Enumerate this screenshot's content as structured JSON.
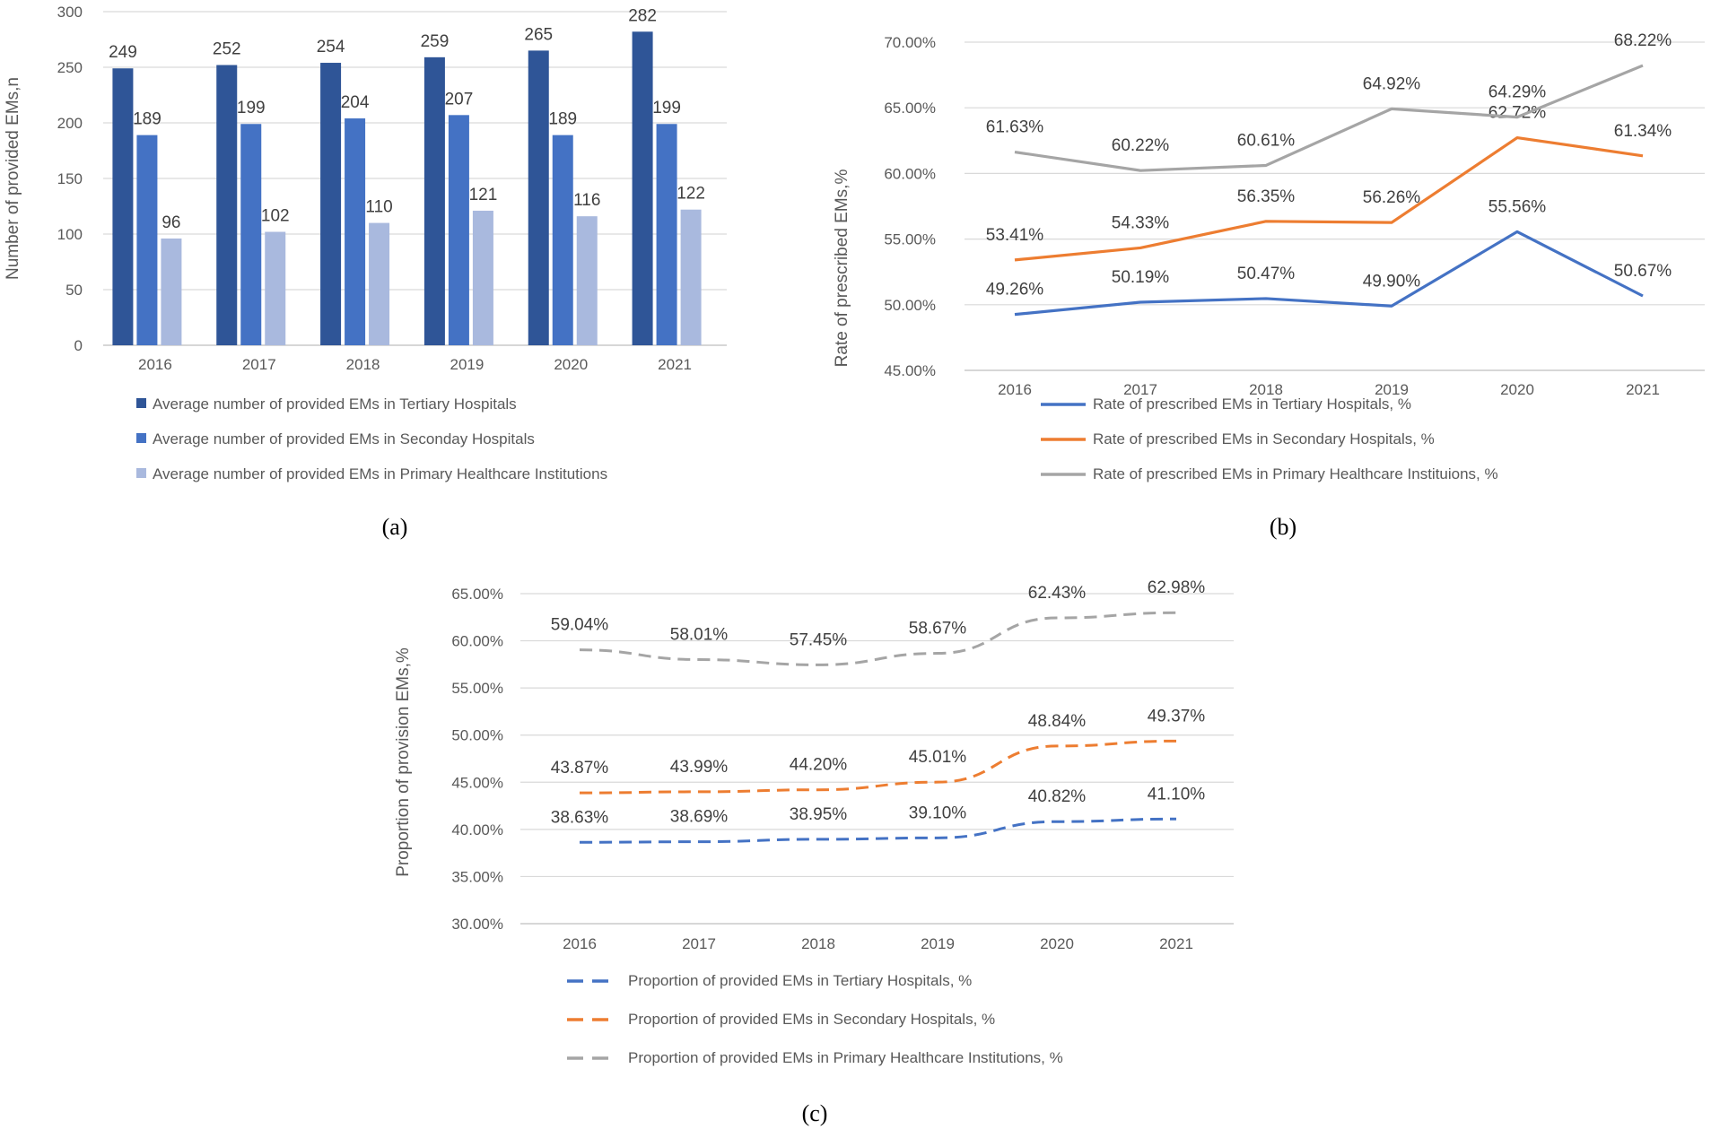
{
  "chart_data": [
    {
      "id": "a",
      "type": "bar",
      "caption": "(a)",
      "title": "",
      "xlabel": "",
      "ylabel": "Number of provided EMs,n",
      "ylim": [
        0,
        300
      ],
      "yticks": [
        "0",
        "50",
        "100",
        "150",
        "200",
        "250",
        "300"
      ],
      "categories": [
        "2016",
        "2017",
        "2018",
        "2019",
        "2020",
        "2021"
      ],
      "series": [
        {
          "name": "Average number of provided EMs in Tertiary Hospitals",
          "color": "#2f5597",
          "values": [
            249,
            252,
            254,
            259,
            265,
            282
          ]
        },
        {
          "name": "Average number of provided EMs in Seconday Hospitals",
          "color": "#4472c4",
          "values": [
            189,
            199,
            204,
            207,
            189,
            199
          ]
        },
        {
          "name": "Average number of provided EMs in Primary Healthcare Institutions",
          "color": "#a9b9de",
          "values": [
            96,
            102,
            110,
            121,
            116,
            122
          ]
        }
      ],
      "legend_position": "bottom",
      "grid": true
    },
    {
      "id": "b",
      "type": "line",
      "caption": "(b)",
      "title": "",
      "xlabel": "",
      "ylabel": "Rate of prescribed EMs,%",
      "ylim": [
        45,
        70
      ],
      "yticks": [
        "45.00%",
        "50.00%",
        "55.00%",
        "60.00%",
        "65.00%",
        "70.00%"
      ],
      "categories": [
        "2016",
        "2017",
        "2018",
        "2019",
        "2020",
        "2021"
      ],
      "series": [
        {
          "name": "Rate of prescribed EMs in Tertiary Hospitals, %",
          "color": "#4472c4",
          "style": "solid",
          "values": [
            49.26,
            50.19,
            50.47,
            49.9,
            55.56,
            50.67
          ],
          "labels": [
            "49.26%",
            "50.19%",
            "50.47%",
            "49.90%",
            "55.56%",
            "50.67%"
          ]
        },
        {
          "name": "Rate of prescribed EMs in Secondary Hospitals, %",
          "color": "#ed7d31",
          "style": "solid",
          "values": [
            53.41,
            54.33,
            56.35,
            56.26,
            62.72,
            61.34
          ],
          "labels": [
            "53.41%",
            "54.33%",
            "56.35%",
            "56.26%",
            "62.72%",
            "61.34%"
          ]
        },
        {
          "name": "Rate of prescribed EMs in Primary Healthcare Instituions, %",
          "color": "#a5a5a5",
          "style": "solid",
          "values": [
            61.63,
            60.22,
            60.61,
            64.92,
            64.29,
            68.22
          ],
          "labels": [
            "61.63%",
            "60.22%",
            "60.61%",
            "64.92%",
            "64.29%",
            "68.22%"
          ]
        }
      ],
      "legend_position": "bottom",
      "grid": true
    },
    {
      "id": "c",
      "type": "line",
      "caption": "(c)",
      "title": "",
      "xlabel": "",
      "ylabel": "Proportion of provision EMs,%",
      "ylim": [
        30,
        65
      ],
      "yticks": [
        "30.00%",
        "35.00%",
        "40.00%",
        "45.00%",
        "50.00%",
        "55.00%",
        "60.00%",
        "65.00%"
      ],
      "categories": [
        "2016",
        "2017",
        "2018",
        "2019",
        "2020",
        "2021"
      ],
      "series": [
        {
          "name": "Proportion of provided EMs in Tertiary Hospitals, %",
          "color": "#4472c4",
          "style": "dashed",
          "values": [
            38.63,
            38.69,
            38.95,
            39.1,
            40.82,
            41.1
          ],
          "labels": [
            "38.63%",
            "38.69%",
            "38.95%",
            "39.10%",
            "40.82%",
            "41.10%"
          ]
        },
        {
          "name": "Proportion of provided EMs in Secondary Hospitals, %",
          "color": "#ed7d31",
          "style": "dashed",
          "values": [
            43.87,
            43.99,
            44.2,
            45.01,
            48.84,
            49.37
          ],
          "labels": [
            "43.87%",
            "43.99%",
            "44.20%",
            "45.01%",
            "48.84%",
            "49.37%"
          ]
        },
        {
          "name": "Proportion of provided EMs in Primary Healthcare Institutions, %",
          "color": "#a5a5a5",
          "style": "dashed",
          "values": [
            59.04,
            58.01,
            57.45,
            58.67,
            62.43,
            62.98
          ],
          "labels": [
            "59.04%",
            "58.01%",
            "57.45%",
            "58.67%",
            "62.43%",
            "62.98%"
          ]
        }
      ],
      "legend_position": "bottom",
      "grid": true
    }
  ]
}
